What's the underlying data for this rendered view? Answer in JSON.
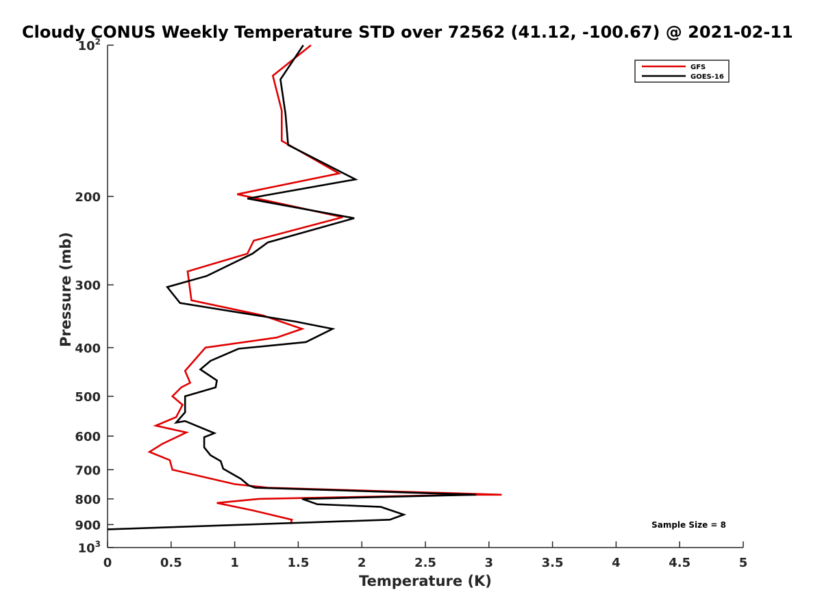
{
  "chart_data": {
    "type": "line",
    "title": "Cloudy CONUS Weekly Temperature STD over 72562 (41.12, -100.67) @ 2021-02-11",
    "xlabel": "Temperature (K)",
    "ylabel": "Pressure (mb)",
    "xlim": [
      0,
      5
    ],
    "ylim": [
      100,
      1000
    ],
    "yscale": "log",
    "y_reversed": true,
    "x_ticks": [
      "0",
      "0.5",
      "1",
      "1.5",
      "2",
      "2.5",
      "3",
      "3.5",
      "4",
      "4.5",
      "5"
    ],
    "y_ticks": [
      {
        "value": 100,
        "base": "10",
        "exp": "2"
      },
      {
        "value": 200,
        "label": "200"
      },
      {
        "value": 300,
        "label": "300"
      },
      {
        "value": 400,
        "label": "400"
      },
      {
        "value": 500,
        "label": "500"
      },
      {
        "value": 600,
        "label": "600"
      },
      {
        "value": 700,
        "label": "700"
      },
      {
        "value": 800,
        "label": "800"
      },
      {
        "value": 900,
        "label": "900"
      },
      {
        "value": 1000,
        "base": "10",
        "exp": "3"
      }
    ],
    "grid": false,
    "legend_position": "top-right",
    "annotation": "Sample Size = 8",
    "series": [
      {
        "name": "GFS",
        "color": "#e00000",
        "points": [
          [
            1.6,
            100
          ],
          [
            1.3,
            115
          ],
          [
            1.37,
            135
          ],
          [
            1.37,
            155
          ],
          [
            1.82,
            180
          ],
          [
            1.02,
            198
          ],
          [
            1.85,
            220
          ],
          [
            1.15,
            245
          ],
          [
            1.1,
            260
          ],
          [
            0.63,
            282
          ],
          [
            0.66,
            322
          ],
          [
            1.22,
            345
          ],
          [
            1.53,
            367
          ],
          [
            1.33,
            382
          ],
          [
            0.77,
            400
          ],
          [
            0.61,
            445
          ],
          [
            0.65,
            470
          ],
          [
            0.58,
            480
          ],
          [
            0.51,
            500
          ],
          [
            0.59,
            520
          ],
          [
            0.54,
            550
          ],
          [
            0.38,
            572
          ],
          [
            0.62,
            590
          ],
          [
            0.43,
            622
          ],
          [
            0.33,
            645
          ],
          [
            0.49,
            670
          ],
          [
            0.51,
            700
          ],
          [
            1.0,
            748
          ],
          [
            1.26,
            760
          ],
          [
            3.1,
            785
          ],
          [
            2.86,
            785
          ],
          [
            1.19,
            800
          ],
          [
            0.86,
            815
          ],
          [
            1.14,
            843
          ],
          [
            1.45,
            880
          ],
          [
            1.44,
            898
          ]
        ]
      },
      {
        "name": "GOES-16",
        "color": "#000000",
        "points": [
          [
            1.54,
            100
          ],
          [
            1.36,
            117
          ],
          [
            1.4,
            137
          ],
          [
            1.42,
            158
          ],
          [
            1.95,
            185
          ],
          [
            1.1,
            202
          ],
          [
            1.94,
            221
          ],
          [
            1.26,
            247
          ],
          [
            1.14,
            260
          ],
          [
            0.78,
            288
          ],
          [
            0.47,
            303
          ],
          [
            0.57,
            326
          ],
          [
            1.48,
            355
          ],
          [
            1.77,
            367
          ],
          [
            1.56,
            390
          ],
          [
            1.03,
            402
          ],
          [
            0.81,
            425
          ],
          [
            0.73,
            442
          ],
          [
            0.86,
            465
          ],
          [
            0.85,
            480
          ],
          [
            0.61,
            500
          ],
          [
            0.61,
            538
          ],
          [
            0.54,
            564
          ],
          [
            0.61,
            560
          ],
          [
            0.84,
            592
          ],
          [
            0.76,
            603
          ],
          [
            0.76,
            632
          ],
          [
            0.81,
            655
          ],
          [
            0.89,
            673
          ],
          [
            0.91,
            697
          ],
          [
            1.05,
            730
          ],
          [
            1.11,
            752
          ],
          [
            1.16,
            760
          ],
          [
            2.9,
            785
          ],
          [
            1.53,
            800
          ],
          [
            1.65,
            820
          ],
          [
            2.15,
            830
          ],
          [
            2.33,
            860
          ],
          [
            2.22,
            880
          ],
          [
            0.0,
            920
          ]
        ]
      }
    ]
  }
}
